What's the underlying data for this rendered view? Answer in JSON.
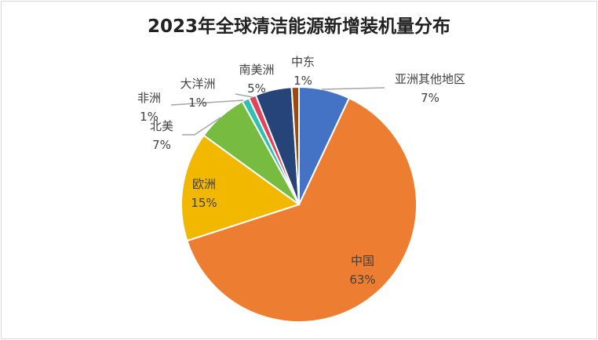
{
  "chart_data": {
    "type": "pie",
    "title": "2023年全球清洁能源新增装机量分布",
    "start_angle": "12 o'clock",
    "direction": "clockwise",
    "slices": [
      {
        "label": "亚洲其他地区",
        "value": 7,
        "display": "7%",
        "color": "#4472C4"
      },
      {
        "label": "中国",
        "value": 63,
        "display": "63%",
        "color": "#ED7D31"
      },
      {
        "label": "欧洲",
        "value": 15,
        "display": "15%",
        "color": "#F2B800"
      },
      {
        "label": "北美",
        "value": 7,
        "display": "7%",
        "color": "#77BB41"
      },
      {
        "label": "非洲",
        "value": 1,
        "display": "1%",
        "color": "#2EC0B0"
      },
      {
        "label": "大洋洲",
        "value": 1,
        "display": "1%",
        "color": "#E0435A"
      },
      {
        "label": "南美洲",
        "value": 5,
        "display": "5%",
        "color": "#264478"
      },
      {
        "label": "中东",
        "value": 1,
        "display": "1%",
        "color": "#9E480E"
      }
    ],
    "legend": "none"
  }
}
